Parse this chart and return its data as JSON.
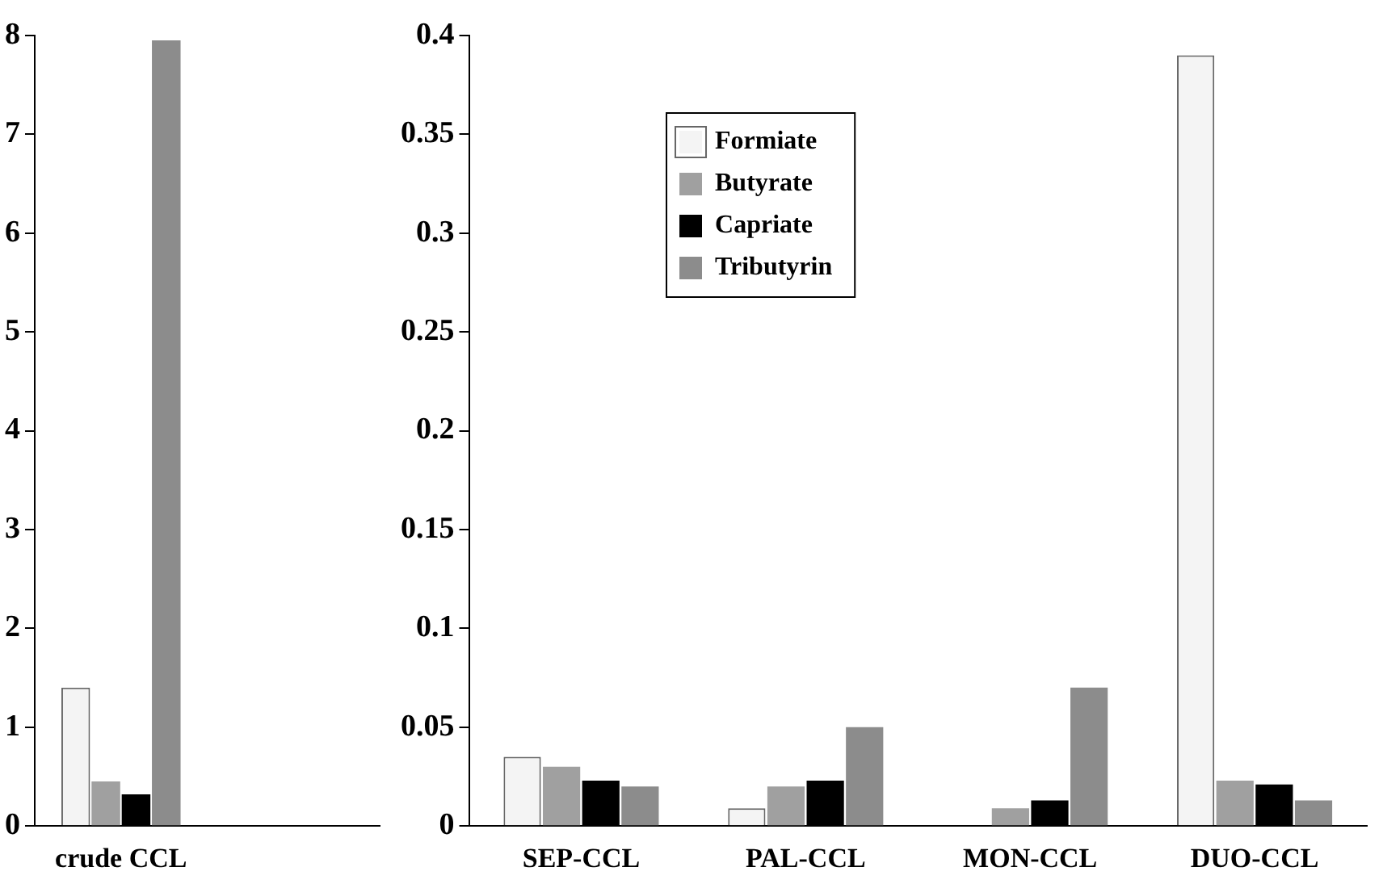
{
  "chart_data": [
    {
      "type": "bar",
      "categories": [
        "crude CCL",
        null
      ],
      "series": [
        {
          "color": "#f4f4f4",
          "values": [
            1.4,
            null
          ]
        },
        {
          "color": "#a0a0a0",
          "values": [
            0.45,
            null
          ]
        },
        {
          "color": "#000000",
          "values": [
            0.32,
            null
          ]
        },
        {
          "color": "#8c8c8c",
          "values": [
            7.95,
            null
          ]
        }
      ],
      "ylim": [
        0,
        8
      ],
      "yticks": [
        0,
        1,
        2,
        3,
        4,
        5,
        6,
        7,
        8
      ],
      "grid": false,
      "legend": false
    },
    {
      "type": "bar",
      "categories": [
        "SEP-CCL",
        "PAL-CCL",
        "MON-CCL",
        "DUO-CCL"
      ],
      "series": [
        {
          "name": "Formiate",
          "color": "#f4f4f4",
          "values": [
            0.035,
            0.009,
            0,
            0.39
          ]
        },
        {
          "name": "Butyrate",
          "color": "#a0a0a0",
          "values": [
            0.03,
            0.02,
            0.009,
            0.023
          ]
        },
        {
          "name": "Capriate",
          "color": "#000000",
          "values": [
            0.023,
            0.023,
            0.013,
            0.021
          ]
        },
        {
          "name": "Tributyrin",
          "color": "#8c8c8c",
          "values": [
            0.02,
            0.05,
            0.07,
            0.013
          ]
        }
      ],
      "ylim": [
        0,
        0.4
      ],
      "yticks": [
        0,
        0.05,
        0.1,
        0.15,
        0.2,
        0.25,
        0.3,
        0.35,
        0.4
      ],
      "grid": false,
      "legend": "top"
    }
  ]
}
